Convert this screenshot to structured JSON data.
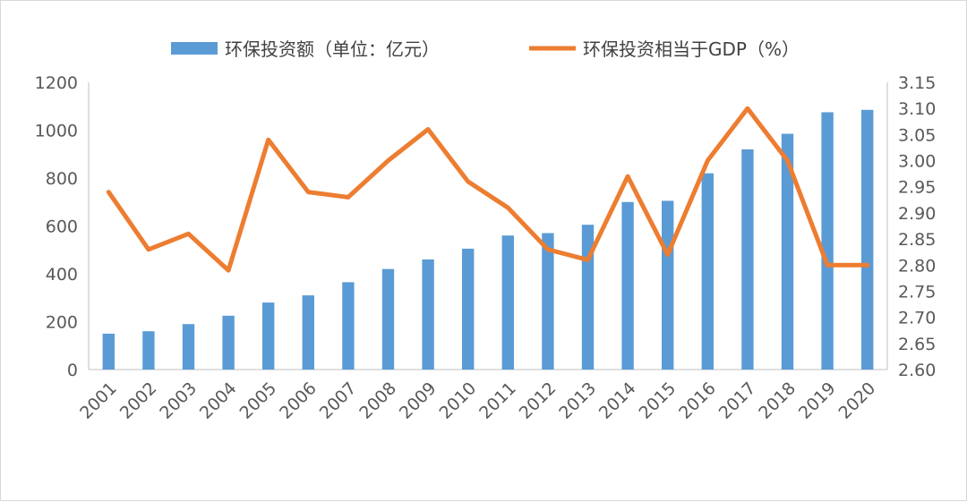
{
  "chart_data": {
    "type": "bar",
    "categories": [
      "2001",
      "2002",
      "2003",
      "2004",
      "2005",
      "2006",
      "2007",
      "2008",
      "2009",
      "2010",
      "2011",
      "2012",
      "2013",
      "2014",
      "2015",
      "2016",
      "2017",
      "2018",
      "2019",
      "2020"
    ],
    "series": [
      {
        "name": "环保投资额（单位：亿元）",
        "type": "bar",
        "axis": "left",
        "color": "#5b9bd5",
        "values": [
          150,
          160,
          190,
          225,
          280,
          310,
          365,
          420,
          460,
          505,
          560,
          570,
          605,
          700,
          705,
          820,
          920,
          985,
          1075,
          1085
        ]
      },
      {
        "name": "环保投资相当于GDP（%）",
        "type": "line",
        "axis": "right",
        "color": "#ed7d31",
        "values": [
          2.94,
          2.83,
          2.86,
          2.79,
          3.04,
          2.94,
          2.93,
          3.0,
          3.06,
          2.96,
          2.91,
          2.83,
          2.81,
          2.97,
          2.82,
          3.0,
          3.1,
          3.0,
          2.8,
          2.8
        ]
      }
    ],
    "y_left": {
      "ylim": [
        0,
        1200
      ],
      "ticks": [
        "0",
        "200",
        "400",
        "600",
        "800",
        "1000",
        "1200"
      ]
    },
    "y_right": {
      "ylim": [
        2.6,
        3.15
      ],
      "ticks": [
        "2.60",
        "2.65",
        "2.70",
        "2.75",
        "2.80",
        "2.85",
        "2.90",
        "2.95",
        "3.00",
        "3.05",
        "3.10",
        "3.15"
      ]
    },
    "title": "",
    "xlabel": "",
    "ylabel": "",
    "grid": false,
    "legend_position": "top"
  }
}
